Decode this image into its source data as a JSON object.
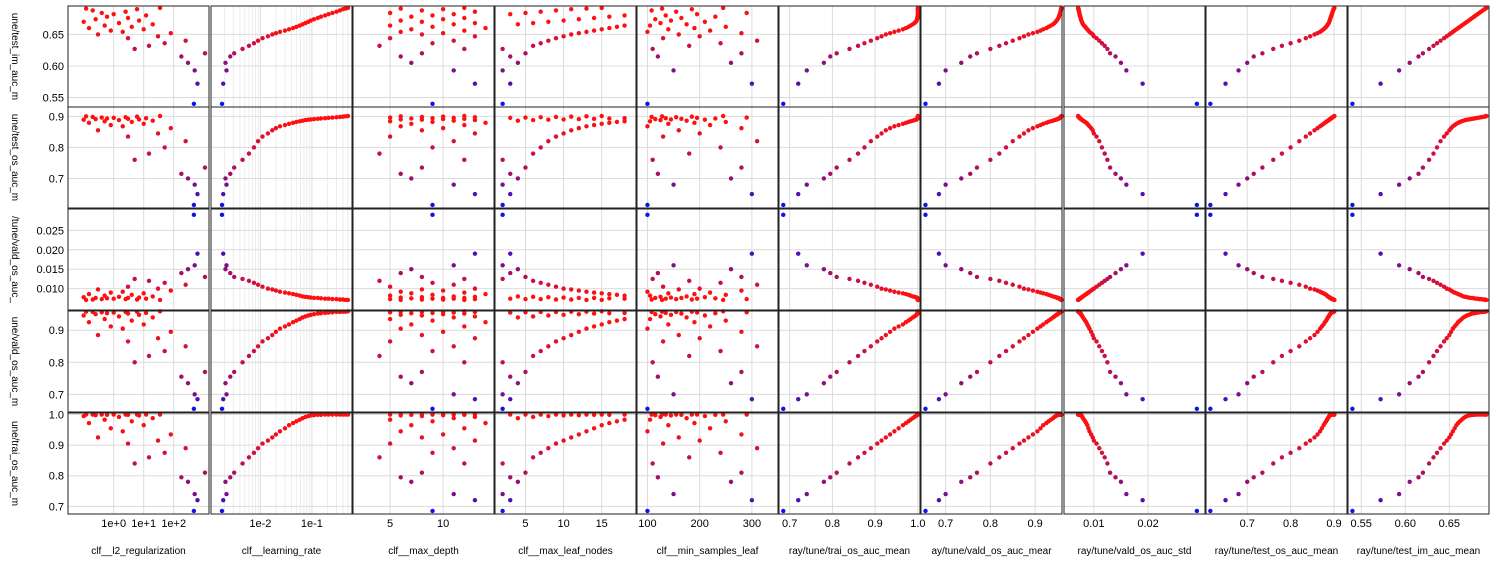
{
  "chart_data": {
    "type": "scatter",
    "layout": "scatter-matrix",
    "grid": true,
    "color_scale": [
      "#1010f0",
      "#ff1010"
    ],
    "x_columns": [
      {
        "label": "clf__l2_regularization",
        "scale": "log",
        "lim": [
          0.03,
          1500
        ],
        "ticks": [
          1,
          10,
          100
        ],
        "tick_labels": [
          "1e+0",
          "1e+1",
          "1e+2"
        ]
      },
      {
        "label": "clf__learning_rate",
        "scale": "log",
        "lim": [
          0.0011,
          0.6
        ],
        "ticks": [
          0.01,
          0.1
        ],
        "tick_labels": [
          "1e-2",
          "1e-1"
        ],
        "minor_ticks": [
          0.002,
          0.003,
          0.004,
          0.005,
          0.006,
          0.007,
          0.008,
          0.009,
          0.02,
          0.03,
          0.04,
          0.05,
          0.06,
          0.07,
          0.08,
          0.09,
          0.2,
          0.3,
          0.4,
          0.5
        ]
      },
      {
        "label": "clf__max_depth",
        "scale": "linear",
        "lim": [
          1.5,
          14.8
        ],
        "ticks": [
          5,
          10
        ],
        "tick_labels": [
          "5",
          "10"
        ]
      },
      {
        "label": "clf__max_leaf_nodes",
        "scale": "linear",
        "lim": [
          1,
          19.5
        ],
        "ticks": [
          5,
          10,
          15
        ],
        "tick_labels": [
          "5",
          "10",
          "15"
        ]
      },
      {
        "label": "clf__min_samples_leaf",
        "scale": "linear",
        "lim": [
          80,
          350
        ],
        "ticks": [
          100,
          200,
          300
        ],
        "tick_labels": [
          "100",
          "200",
          "300"
        ]
      },
      {
        "label": "ray/tune/trai_os_auc_mean",
        "scale": "linear",
        "lim": [
          0.675,
          1.005
        ],
        "ticks": [
          0.7,
          0.8,
          0.9,
          1.0
        ],
        "tick_labels": [
          "0.7",
          "0.8",
          "0.9",
          "1.0"
        ]
      },
      {
        "label": "ray/tune/vald_os_auc_mean",
        "scale": "linear",
        "lim": [
          0.645,
          0.96
        ],
        "ticks": [
          0.7,
          0.8,
          0.9
        ],
        "tick_labels": [
          "0.7",
          "0.8",
          "0.9"
        ]
      },
      {
        "label": "ray/tune/vald_os_auc_std",
        "scale": "linear",
        "lim": [
          0.0045,
          0.0305
        ],
        "ticks": [
          0.01,
          0.02
        ],
        "tick_labels": [
          "0.01",
          "0.02"
        ]
      },
      {
        "label": "ray/tune/test_os_auc_mean",
        "scale": "linear",
        "lim": [
          0.605,
          0.93
        ],
        "ticks": [
          0.7,
          0.8,
          0.9
        ],
        "tick_labels": [
          "0.7",
          "0.8",
          "0.9"
        ]
      },
      {
        "label": "ray/tune/test_im_auc_mean",
        "scale": "linear",
        "lim": [
          0.535,
          0.695
        ],
        "ticks": [
          0.55,
          0.6,
          0.65
        ],
        "tick_labels": [
          "0.55",
          "0.60",
          "0.65"
        ]
      }
    ],
    "y_rows": [
      {
        "label": "ray/tune/test_im_auc_mean",
        "display_label": "une/test_im_auc_m",
        "col": 9,
        "lim": [
          0.535,
          0.695
        ],
        "ticks": [
          0.55,
          0.6,
          0.65
        ],
        "tick_labels": [
          "0.55",
          "0.60",
          "0.65"
        ]
      },
      {
        "label": "ray/tune/test_os_auc_mean",
        "display_label": "une/test_os_auc_m",
        "col": 8,
        "lim": [
          0.605,
          0.93
        ],
        "ticks": [
          0.7,
          0.8,
          0.9
        ],
        "tick_labels": [
          "0.7",
          "0.8",
          "0.9"
        ]
      },
      {
        "label": "ray/tune/vald_os_auc_std",
        "display_label": "/tune/vald_os_auc_",
        "col": 7,
        "lim": [
          0.0045,
          0.0305
        ],
        "ticks": [
          0.01,
          0.015,
          0.02,
          0.025
        ],
        "tick_labels": [
          "0.010",
          "0.015",
          "0.020",
          "0.025"
        ]
      },
      {
        "label": "ray/tune/vald_os_auc_mean",
        "display_label": "une/vald_os_auc_m",
        "col": 6,
        "lim": [
          0.645,
          0.96
        ],
        "ticks": [
          0.7,
          0.8,
          0.9
        ],
        "tick_labels": [
          "0.7",
          "0.8",
          "0.9"
        ]
      },
      {
        "label": "ray/tune/trai_os_auc_mean",
        "display_label": "une/trai_os_auc_m",
        "col": 5,
        "lim": [
          0.675,
          1.005
        ],
        "ticks": [
          0.7,
          0.8,
          0.9,
          1.0
        ],
        "tick_labels": [
          "0.7",
          "0.8",
          "0.9",
          "1.0"
        ]
      }
    ],
    "x_axis_labels": [
      "clf__l2_regularization",
      "clf__learning_rate",
      "clf__max_depth",
      "clf__max_leaf_nodes",
      "clf__min_samples_leaf",
      "ray/tune/trai_os_auc_mean",
      "ay/tune/vald_os_auc_mear",
      "ray/tune/vald_os_auc_std",
      "ray/tune/test_os_auc_mean",
      "ray/tune/test_im_auc_mean"
    ],
    "points": [
      [
        470,
        0.0018,
        9,
        2,
        100,
        0.685,
        0.655,
        0.029,
        0.615,
        0.54
      ],
      [
        620,
        0.0019,
        13,
        3,
        300,
        0.72,
        0.685,
        0.019,
        0.65,
        0.572
      ],
      [
        500,
        0.0022,
        11,
        2,
        150,
        0.74,
        0.7,
        0.016,
        0.68,
        0.593
      ],
      [
        300,
        0.0021,
        7,
        4,
        260,
        0.78,
        0.735,
        0.015,
        0.7,
        0.605
      ],
      [
        180,
        0.0026,
        6,
        3,
        120,
        0.795,
        0.755,
        0.014,
        0.715,
        0.615
      ],
      [
        1100,
        0.0031,
        8,
        5,
        280,
        0.81,
        0.77,
        0.013,
        0.735,
        0.62
      ],
      [
        5,
        0.0045,
        12,
        2,
        110,
        0.84,
        0.8,
        0.0125,
        0.76,
        0.627
      ],
      [
        15,
        0.006,
        4,
        6,
        180,
        0.86,
        0.82,
        0.012,
        0.78,
        0.632
      ],
      [
        50,
        0.0075,
        9,
        7,
        240,
        0.875,
        0.835,
        0.0115,
        0.8,
        0.636
      ],
      [
        250,
        0.009,
        11,
        8,
        310,
        0.89,
        0.85,
        0.011,
        0.82,
        0.64
      ],
      [
        3,
        0.011,
        5,
        9,
        130,
        0.905,
        0.865,
        0.0105,
        0.835,
        0.644
      ],
      [
        30,
        0.014,
        13,
        10,
        200,
        0.915,
        0.875,
        0.01,
        0.845,
        0.647
      ],
      [
        0.3,
        0.017,
        8,
        11,
        160,
        0.925,
        0.885,
        0.0098,
        0.855,
        0.65
      ],
      [
        80,
        0.02,
        10,
        12,
        280,
        0.935,
        0.895,
        0.0095,
        0.862,
        0.652
      ],
      [
        2,
        0.024,
        6,
        13,
        100,
        0.945,
        0.905,
        0.0092,
        0.868,
        0.654
      ],
      [
        0.8,
        0.03,
        12,
        14,
        220,
        0.955,
        0.912,
        0.009,
        0.872,
        0.656
      ],
      [
        10,
        0.036,
        7,
        15,
        140,
        0.965,
        0.918,
        0.0088,
        0.876,
        0.658
      ],
      [
        0.15,
        0.043,
        14,
        16,
        190,
        0.972,
        0.925,
        0.0086,
        0.879,
        0.66
      ],
      [
        4,
        0.05,
        9,
        17,
        250,
        0.978,
        0.93,
        0.0084,
        0.882,
        0.662
      ],
      [
        0.5,
        0.058,
        5,
        18,
        105,
        0.983,
        0.935,
        0.0082,
        0.884,
        0.664
      ],
      [
        20,
        0.066,
        11,
        4,
        175,
        0.988,
        0.94,
        0.008,
        0.886,
        0.666
      ],
      [
        1.5,
        0.075,
        13,
        6,
        125,
        0.992,
        0.943,
        0.0079,
        0.888,
        0.668
      ],
      [
        0.1,
        0.085,
        8,
        8,
        210,
        0.995,
        0.946,
        0.0078,
        0.889,
        0.67
      ],
      [
        7,
        0.095,
        6,
        10,
        145,
        0.997,
        0.948,
        0.0077,
        0.89,
        0.672
      ],
      [
        0.25,
        0.11,
        10,
        12,
        115,
        0.998,
        0.95,
        0.0076,
        0.891,
        0.674
      ],
      [
        3,
        0.13,
        12,
        14,
        165,
        0.999,
        0.952,
        0.0076,
        0.892,
        0.676
      ],
      [
        0.6,
        0.15,
        7,
        16,
        230,
        0.999,
        0.953,
        0.0075,
        0.893,
        0.678
      ],
      [
        12,
        0.18,
        9,
        18,
        135,
        1.0,
        0.954,
        0.0074,
        0.894,
        0.68
      ],
      [
        1,
        0.21,
        11,
        3,
        195,
        1.0,
        0.955,
        0.0074,
        0.895,
        0.682
      ],
      [
        0.4,
        0.25,
        5,
        5,
        290,
        1.0,
        0.956,
        0.0073,
        0.896,
        0.684
      ],
      [
        2.5,
        0.3,
        13,
        7,
        155,
        1.0,
        0.957,
        0.0073,
        0.897,
        0.686
      ],
      [
        0.2,
        0.35,
        8,
        9,
        108,
        1.0,
        0.957,
        0.0072,
        0.898,
        0.688
      ],
      [
        6,
        0.4,
        10,
        11,
        185,
        1.0,
        0.958,
        0.0072,
        0.899,
        0.69
      ],
      [
        0.12,
        0.45,
        6,
        13,
        128,
        1.0,
        0.958,
        0.0071,
        0.9,
        0.691
      ],
      [
        35,
        0.5,
        12,
        15,
        245,
        1.0,
        0.959,
        0.0071,
        0.901,
        0.692
      ]
    ]
  }
}
